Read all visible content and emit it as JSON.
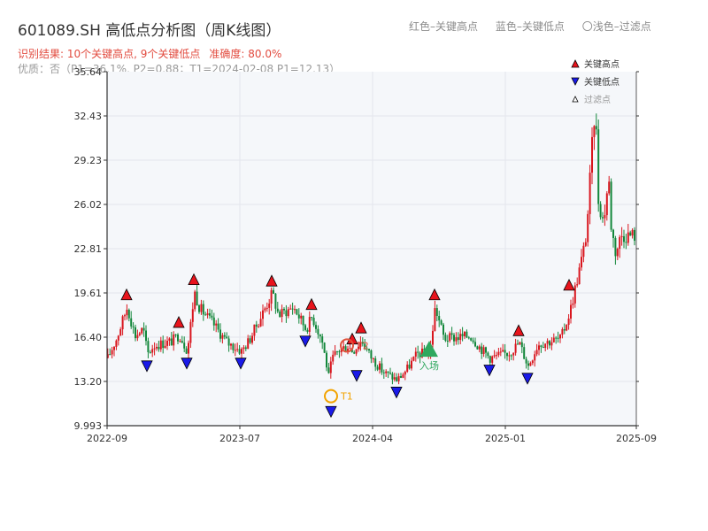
{
  "header": {
    "title": "601089.SH 高低点分析图（周K线图）",
    "legend_red": "红色–关键高点",
    "legend_blue": "蓝色–关键低点",
    "legend_light": "〇浅色–过滤点"
  },
  "info": {
    "result": "识别结果: 10个关键高点, 9个关键低点",
    "accuracy": "准确度: 80.0%",
    "quality": "优质：否（P1=36.1%, P2=0.88；T1=2024-02-08 P1=12.13）"
  },
  "legend": {
    "high": "关键高点",
    "low": "关键低点",
    "filtered": "过滤点"
  },
  "colors": {
    "up": "#d9161e",
    "down": "#13873b",
    "high_marker": "#e8141c",
    "low_marker": "#1a1ae8",
    "t_marker": "#f2a300",
    "t2_marker": "#e0523c",
    "entry": "#2fa85e",
    "plot_bg": "#f5f7fa"
  },
  "chart_data": {
    "type": "candlestick",
    "x_ticks": [
      "2022-09",
      "2023-07",
      "2024-04",
      "2025-01",
      "2025-09"
    ],
    "y_ticks": [
      "9.993",
      "13.20",
      "16.40",
      "19.61",
      "22.81",
      "26.02",
      "29.23",
      "32.43",
      "35.64"
    ],
    "ylim": [
      9.993,
      35.64
    ],
    "price_path": [
      [
        0,
        14.9
      ],
      [
        10,
        16.3
      ],
      [
        22,
        18.6
      ],
      [
        31,
        16.5
      ],
      [
        40,
        17.0
      ],
      [
        45,
        15.2
      ],
      [
        52,
        15.8
      ],
      [
        72,
        16.1
      ],
      [
        81,
        16.6
      ],
      [
        90,
        15.4
      ],
      [
        98,
        19.7
      ],
      [
        104,
        18.5
      ],
      [
        120,
        17.3
      ],
      [
        135,
        16.0
      ],
      [
        151,
        15.4
      ],
      [
        160,
        16.2
      ],
      [
        186,
        19.6
      ],
      [
        193,
        18.0
      ],
      [
        210,
        18.6
      ],
      [
        224,
        17.0
      ],
      [
        231,
        17.9
      ],
      [
        242,
        16.2
      ],
      [
        250,
        13.4
      ],
      [
        253,
        14.8
      ],
      [
        260,
        15.4
      ],
      [
        271,
        15.8
      ],
      [
        277,
        15.4
      ],
      [
        287,
        16.2
      ],
      [
        297,
        15.0
      ],
      [
        311,
        13.9
      ],
      [
        327,
        13.3
      ],
      [
        337,
        14.0
      ],
      [
        350,
        15.2
      ],
      [
        364,
        15.3
      ],
      [
        370,
        18.6
      ],
      [
        380,
        16.3
      ],
      [
        410,
        16.5
      ],
      [
        420,
        15.7
      ],
      [
        432,
        14.9
      ],
      [
        454,
        15.3
      ],
      [
        465,
        16.0
      ],
      [
        475,
        14.3
      ],
      [
        486,
        15.9
      ],
      [
        512,
        16.3
      ],
      [
        522,
        18.2
      ],
      [
        537,
        22.5
      ],
      [
        541,
        24.0
      ],
      [
        548,
        31.0
      ],
      [
        551,
        33.4
      ],
      [
        554,
        26.5
      ],
      [
        560,
        24.7
      ],
      [
        566,
        28.0
      ],
      [
        569,
        24.3
      ],
      [
        574,
        22.5
      ],
      [
        580,
        23.8
      ]
    ],
    "key_highs": [
      {
        "x": 22,
        "price": 18.6
      },
      {
        "x": 81,
        "price": 16.6
      },
      {
        "x": 98,
        "price": 19.7
      },
      {
        "x": 186,
        "price": 19.6
      },
      {
        "x": 231,
        "price": 17.9
      },
      {
        "x": 277,
        "price": 15.4
      },
      {
        "x": 287,
        "price": 16.2
      },
      {
        "x": 370,
        "price": 18.6
      },
      {
        "x": 465,
        "price": 16.0
      },
      {
        "x": 522,
        "price": 19.3
      }
    ],
    "key_lows": [
      {
        "x": 45,
        "price": 15.2
      },
      {
        "x": 90,
        "price": 15.4
      },
      {
        "x": 151,
        "price": 15.4
      },
      {
        "x": 224,
        "price": 17.0
      },
      {
        "x": 253,
        "price": 11.9
      },
      {
        "x": 282,
        "price": 14.5
      },
      {
        "x": 327,
        "price": 13.3
      },
      {
        "x": 432,
        "price": 14.9
      },
      {
        "x": 475,
        "price": 14.3
      }
    ],
    "t1": {
      "label": "T1",
      "x": 253,
      "price": 12.13
    },
    "t2": {
      "label": "T2",
      "x": 271,
      "price": 15.8
    },
    "entry": {
      "label": "入场",
      "x": 364,
      "price": 15.5
    }
  }
}
